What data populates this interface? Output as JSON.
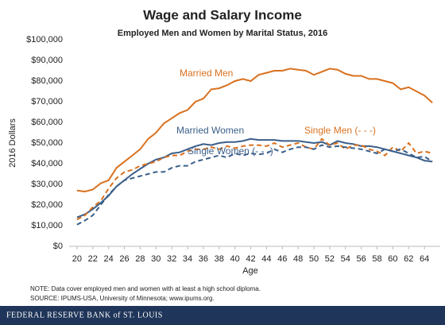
{
  "chart_data": {
    "type": "line",
    "title": "Wage and Salary Income",
    "subtitle": "Employed Men and Women by Marital Status, 2016",
    "y_label": "2016 Dollars",
    "x_label": "Age",
    "notes": [
      "NOTE: Data cover employed men and women with at least a high school diploma.",
      "SOURCE: IPUMS-USA, University of Minnesota; www.ipums.org."
    ],
    "footer": "FEDERAL RESERVE BANK of ST. LOUIS",
    "x": [
      20,
      21,
      22,
      23,
      24,
      25,
      26,
      27,
      28,
      29,
      30,
      31,
      32,
      33,
      34,
      35,
      36,
      37,
      38,
      39,
      40,
      41,
      42,
      43,
      44,
      45,
      46,
      47,
      48,
      49,
      50,
      51,
      52,
      53,
      54,
      55,
      56,
      57,
      58,
      59,
      60,
      61,
      62,
      63,
      64,
      65
    ],
    "xlim": [
      19,
      66
    ],
    "xticks": [
      20,
      22,
      24,
      26,
      28,
      30,
      32,
      34,
      36,
      38,
      40,
      42,
      44,
      46,
      48,
      50,
      52,
      54,
      56,
      58,
      60,
      62,
      64
    ],
    "ylim": [
      0,
      100000
    ],
    "yticks": [
      {
        "value": 0,
        "label": "$0"
      },
      {
        "value": 10000,
        "label": "$10,000"
      },
      {
        "value": 20000,
        "label": "$20,000"
      },
      {
        "value": 30000,
        "label": "$30,000"
      },
      {
        "value": 40000,
        "label": "$40,000"
      },
      {
        "value": 50000,
        "label": "$50,000"
      },
      {
        "value": 60000,
        "label": "$60,000"
      },
      {
        "value": 70000,
        "label": "$70,000"
      },
      {
        "value": 80000,
        "label": "$80,000"
      },
      {
        "value": 90000,
        "label": "$90,000"
      },
      {
        "value": 100000,
        "label": "$100,000"
      }
    ],
    "grid": false,
    "series": [
      {
        "name": "Married Men",
        "color": "#d9711f",
        "dashed": false,
        "values": [
          27000,
          26500,
          27500,
          30500,
          32000,
          38000,
          41000,
          44000,
          47000,
          52000,
          55000,
          59500,
          62000,
          64500,
          66000,
          70000,
          71500,
          76000,
          76500,
          78000,
          80000,
          81000,
          80000,
          83000,
          84000,
          85000,
          85000,
          86000,
          85500,
          85000,
          83000,
          84500,
          86000,
          85500,
          83500,
          82500,
          82500,
          81000,
          81000,
          80000,
          79000,
          76000,
          77000,
          75000,
          73000,
          69500
        ]
      },
      {
        "name": "Married Women",
        "color": "#3a5f8a",
        "dashed": false,
        "values": [
          14000,
          15500,
          18000,
          21000,
          24500,
          29000,
          32000,
          35000,
          37500,
          40000,
          42000,
          43000,
          45000,
          45500,
          47000,
          48500,
          49500,
          49000,
          50000,
          50500,
          50500,
          51000,
          52000,
          51500,
          51500,
          51500,
          51000,
          51000,
          51000,
          50500,
          50000,
          50500,
          49000,
          51000,
          50000,
          49500,
          48500,
          48500,
          48000,
          47000,
          46000,
          45000,
          44000,
          43000,
          41500,
          41000
        ]
      },
      {
        "name": "Single Men (- - -)",
        "color": "#d9711f",
        "dashed": true,
        "values": [
          13000,
          15000,
          19000,
          22000,
          28000,
          33000,
          36000,
          37000,
          39000,
          40000,
          41000,
          43000,
          44000,
          44000,
          46000,
          47000,
          47000,
          48000,
          47000,
          48500,
          47500,
          48500,
          49000,
          49000,
          48500,
          50000,
          48000,
          49000,
          50000,
          48000,
          47000,
          52000,
          49000,
          50000,
          47000,
          49000,
          49000,
          47000,
          46000,
          44000,
          48000,
          46000,
          50000,
          45000,
          46000,
          45000
        ]
      },
      {
        "name": "Single Women (- - -)",
        "color": "#3a5f8a",
        "dashed": true,
        "values": [
          10500,
          12500,
          15000,
          20000,
          25000,
          29000,
          32000,
          33000,
          34000,
          35000,
          36000,
          36000,
          38000,
          39000,
          39000,
          41000,
          42000,
          43000,
          44000,
          43000,
          45000,
          44000,
          45000,
          44500,
          45000,
          47000,
          45500,
          47000,
          48000,
          48000,
          47000,
          49000,
          48000,
          48500,
          48000,
          47500,
          47000,
          46000,
          45000,
          47000,
          46000,
          47000,
          45000,
          43000,
          43500,
          41000
        ]
      }
    ]
  }
}
